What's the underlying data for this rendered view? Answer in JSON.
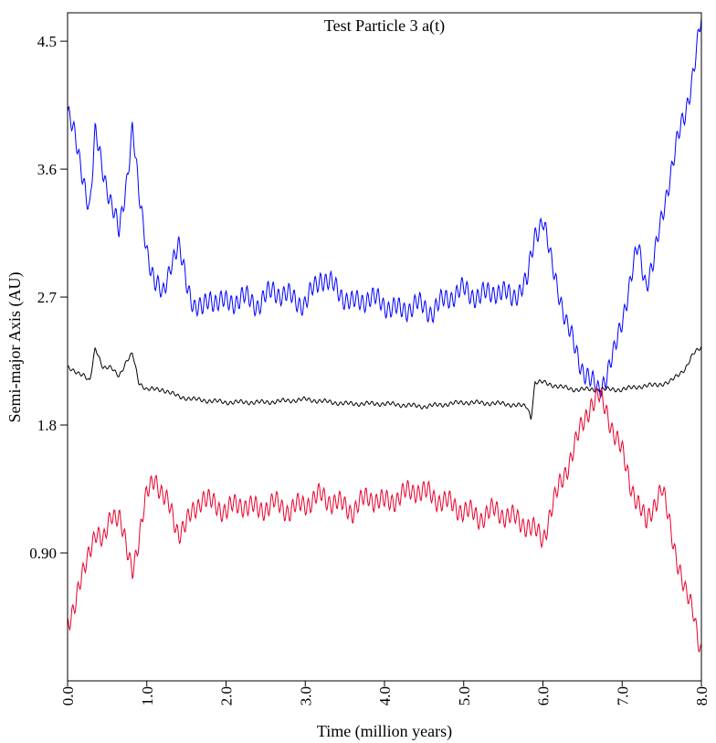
{
  "chart_data": {
    "type": "line",
    "title": "Test Particle 3 a(t)",
    "xlabel": "Time (million years)",
    "ylabel": "Semi-major Axis (AU)",
    "xlim": [
      0.0,
      8.0
    ],
    "ylim": [
      0.0,
      4.7
    ],
    "xticks": [
      "0.0",
      "1.0",
      "2.0",
      "3.0",
      "4.0",
      "5.0",
      "6.0",
      "7.0",
      "8.0"
    ],
    "yticks": [
      "0.90",
      "1.8",
      "2.7",
      "3.6",
      "4.5"
    ],
    "grid": false,
    "legend": "none",
    "series": [
      {
        "color": "#0000ff",
        "x": [
          0.0,
          0.1,
          0.2,
          0.28,
          0.35,
          0.45,
          0.55,
          0.65,
          0.75,
          0.82,
          0.9,
          1.0,
          1.1,
          1.2,
          1.3,
          1.4,
          1.5,
          1.6,
          1.7,
          1.8,
          2.0,
          2.2,
          2.4,
          2.6,
          2.8,
          3.0,
          3.2,
          3.4,
          3.6,
          3.8,
          4.0,
          4.2,
          4.4,
          4.6,
          4.8,
          5.0,
          5.2,
          5.4,
          5.6,
          5.8,
          5.9,
          6.0,
          6.1,
          6.2,
          6.3,
          6.4,
          6.5,
          6.6,
          6.7,
          6.8,
          6.9,
          7.0,
          7.1,
          7.2,
          7.3,
          7.4,
          7.5,
          7.6,
          7.7,
          7.8,
          7.9,
          8.0
        ],
        "y": [
          4.0,
          3.8,
          3.55,
          3.3,
          3.85,
          3.6,
          3.35,
          3.15,
          3.55,
          3.9,
          3.4,
          3.05,
          2.8,
          2.7,
          2.95,
          3.05,
          2.8,
          2.65,
          2.6,
          2.7,
          2.65,
          2.7,
          2.65,
          2.75,
          2.7,
          2.65,
          2.85,
          2.75,
          2.65,
          2.7,
          2.65,
          2.6,
          2.65,
          2.6,
          2.7,
          2.75,
          2.7,
          2.75,
          2.7,
          2.8,
          3.15,
          3.25,
          2.95,
          2.75,
          2.5,
          2.35,
          2.2,
          2.1,
          2.05,
          2.15,
          2.3,
          2.55,
          2.8,
          3.05,
          2.8,
          2.95,
          3.25,
          3.55,
          3.8,
          4.0,
          4.3,
          4.65
        ]
      },
      {
        "color": "#000000",
        "x": [
          0.0,
          0.1,
          0.2,
          0.28,
          0.35,
          0.45,
          0.55,
          0.65,
          0.75,
          0.82,
          0.9,
          1.0,
          1.2,
          1.4,
          1.6,
          2.0,
          2.5,
          3.0,
          3.5,
          4.0,
          4.5,
          5.0,
          5.5,
          5.8,
          5.85,
          5.9,
          6.0,
          6.2,
          6.4,
          6.6,
          6.8,
          7.0,
          7.2,
          7.4,
          7.6,
          7.8,
          7.9,
          8.0
        ],
        "y": [
          2.2,
          2.18,
          2.15,
          2.1,
          2.35,
          2.2,
          2.2,
          2.15,
          2.25,
          2.3,
          2.1,
          2.05,
          2.05,
          2.0,
          1.98,
          1.96,
          1.96,
          1.98,
          1.95,
          1.95,
          1.93,
          1.96,
          1.95,
          1.93,
          1.85,
          2.1,
          2.1,
          2.07,
          2.05,
          2.05,
          2.05,
          2.05,
          2.07,
          2.08,
          2.1,
          2.2,
          2.3,
          2.35
        ]
      },
      {
        "color": "#e8002c",
        "x": [
          0.0,
          0.1,
          0.2,
          0.28,
          0.35,
          0.45,
          0.55,
          0.65,
          0.75,
          0.82,
          0.9,
          1.0,
          1.1,
          1.2,
          1.3,
          1.4,
          1.5,
          1.6,
          1.7,
          1.8,
          2.0,
          2.2,
          2.4,
          2.6,
          2.8,
          3.0,
          3.2,
          3.4,
          3.6,
          3.8,
          4.0,
          4.2,
          4.4,
          4.6,
          4.8,
          5.0,
          5.2,
          5.4,
          5.6,
          5.8,
          5.9,
          6.0,
          6.1,
          6.2,
          6.3,
          6.4,
          6.5,
          6.6,
          6.7,
          6.8,
          6.9,
          7.0,
          7.1,
          7.2,
          7.3,
          7.4,
          7.5,
          7.6,
          7.7,
          7.8,
          7.9,
          8.0
        ],
        "y": [
          0.42,
          0.55,
          0.75,
          0.95,
          1.05,
          0.95,
          1.2,
          1.15,
          0.9,
          0.8,
          1.0,
          1.3,
          1.45,
          1.3,
          1.2,
          1.05,
          1.1,
          1.2,
          1.3,
          1.25,
          1.2,
          1.25,
          1.2,
          1.25,
          1.2,
          1.25,
          1.3,
          1.25,
          1.2,
          1.3,
          1.25,
          1.3,
          1.35,
          1.3,
          1.25,
          1.2,
          1.15,
          1.2,
          1.15,
          1.1,
          1.05,
          1.0,
          1.2,
          1.35,
          1.5,
          1.65,
          1.8,
          1.95,
          2.0,
          1.9,
          1.75,
          1.6,
          1.4,
          1.25,
          1.1,
          1.25,
          1.35,
          1.1,
          0.85,
          0.6,
          0.5,
          0.2
        ]
      }
    ]
  }
}
